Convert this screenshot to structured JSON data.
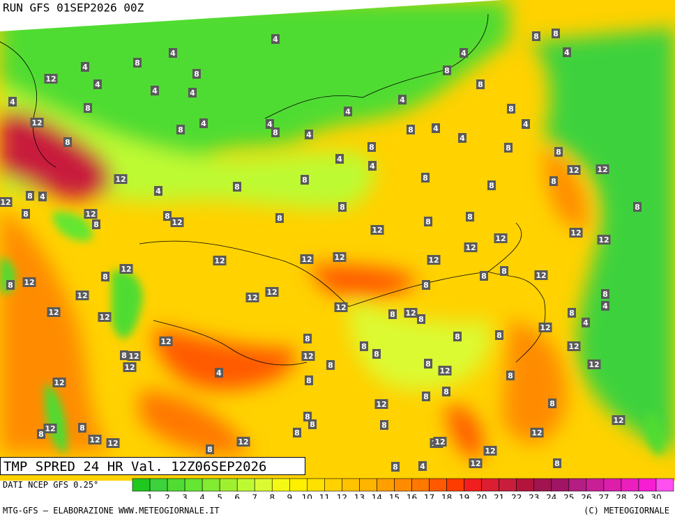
{
  "header": {
    "run": "RUN GFS 01SEP2026 00Z"
  },
  "title": "TMP SPRED 24 HR Val. 12Z06SEP2026",
  "source": "DATI NCEP GFS 0.25°",
  "footer": {
    "left": "MTG-GFS — ELABORAZIONE WWW.METEOGIORNALE.IT",
    "right": "(C) METEOGIORNALE"
  },
  "legend": {
    "ticks": [
      1,
      2,
      3,
      4,
      5,
      6,
      7,
      8,
      9,
      10,
      11,
      12,
      13,
      14,
      15,
      16,
      17,
      18,
      19,
      20,
      21,
      22,
      23,
      24,
      25,
      26,
      27,
      28,
      29,
      30
    ],
    "colors": [
      "#1ec81e",
      "#3cd23c",
      "#50dc32",
      "#64e632",
      "#82eb32",
      "#a0f032",
      "#befa32",
      "#dcfa32",
      "#f5fa14",
      "#fff000",
      "#ffe100",
      "#ffd200",
      "#ffc300",
      "#ffb400",
      "#ffa000",
      "#ff8c00",
      "#ff7800",
      "#ff5a00",
      "#ff3c00",
      "#f01e1e",
      "#dc1e32",
      "#c81e3c",
      "#b4143c",
      "#a01450",
      "#a01464",
      "#b41e82",
      "#c81e96",
      "#dc1eaa",
      "#eb1ebe",
      "#f51ed2",
      "#ff50f0"
    ]
  },
  "map": {
    "contour_labels": [
      4,
      4,
      8,
      8,
      4,
      12,
      4,
      4,
      4,
      8,
      4,
      12,
      8,
      8,
      4,
      4,
      8,
      4,
      4,
      4,
      4,
      8,
      8,
      8,
      8,
      4,
      8,
      4,
      8,
      4,
      4,
      8,
      4,
      4,
      8,
      8,
      12,
      12,
      12,
      4,
      8,
      8,
      8,
      8,
      8,
      8,
      4,
      12,
      8,
      12,
      8,
      12,
      8,
      8,
      12,
      8,
      8,
      8,
      8,
      12,
      12,
      12,
      12,
      12,
      12,
      12,
      12,
      12,
      8,
      8,
      12,
      8,
      12,
      8,
      12,
      12,
      12,
      8,
      8,
      4,
      12,
      12,
      8,
      12,
      8,
      8,
      12,
      4,
      12,
      12,
      8,
      8,
      8,
      8,
      8,
      12,
      8,
      12,
      12,
      12,
      8,
      8,
      12,
      4,
      12,
      8,
      12,
      8,
      8,
      8,
      12,
      8,
      8,
      8,
      8,
      12,
      12,
      8,
      8,
      8,
      12,
      12,
      12,
      12,
      12,
      12,
      8,
      12,
      12,
      8,
      8,
      4
    ]
  }
}
